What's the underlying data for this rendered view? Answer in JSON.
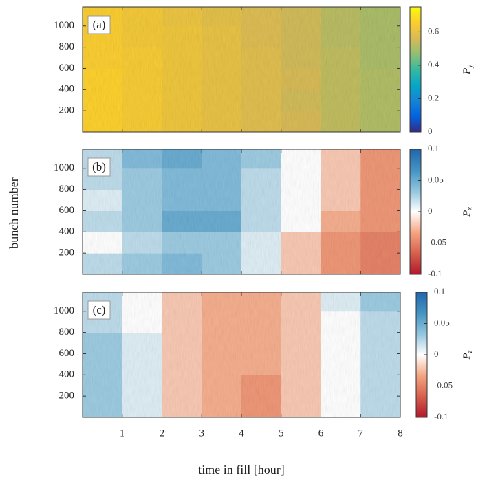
{
  "chart_data": [
    {
      "type": "heatmap",
      "panel_label": "(a)",
      "x_edges": [
        0,
        1,
        2,
        3,
        4,
        5,
        6,
        7,
        8
      ],
      "y_edges": [
        0,
        200,
        400,
        600,
        800,
        1000,
        1180
      ],
      "z": [
        [
          0.66,
          0.64,
          0.62,
          0.6,
          0.58,
          0.56,
          0.53,
          0.51
        ],
        [
          0.66,
          0.64,
          0.62,
          0.6,
          0.58,
          0.55,
          0.53,
          0.51
        ],
        [
          0.66,
          0.64,
          0.62,
          0.6,
          0.58,
          0.56,
          0.53,
          0.51
        ],
        [
          0.65,
          0.64,
          0.62,
          0.6,
          0.58,
          0.55,
          0.53,
          0.5
        ],
        [
          0.65,
          0.63,
          0.62,
          0.6,
          0.57,
          0.55,
          0.52,
          0.5
        ],
        [
          0.65,
          0.63,
          0.61,
          0.59,
          0.57,
          0.55,
          0.52,
          0.5
        ]
      ],
      "xlim": [
        0,
        8
      ],
      "ylim": [
        0,
        1180
      ],
      "xticks": [
        1,
        2,
        3,
        4,
        5,
        6,
        7,
        8
      ],
      "yticks": [
        200,
        400,
        600,
        800,
        1000
      ],
      "clim": [
        0,
        0.75
      ],
      "cticks": [
        0,
        0.2,
        0.4,
        0.6
      ],
      "colormap": [
        "#352a87",
        "#0363e1",
        "#1485d4",
        "#06a7c6",
        "#38b99e",
        "#92bf73",
        "#d9ba56",
        "#fcce2e",
        "#f9fb0e"
      ],
      "colorbar_symbol": "P",
      "colorbar_subscript": "y"
    },
    {
      "type": "heatmap",
      "panel_label": "(b)",
      "ylabel": "bunch number",
      "x_edges": [
        0,
        1,
        2,
        3,
        4,
        5,
        6,
        7,
        8
      ],
      "y_edges": [
        0,
        200,
        400,
        600,
        800,
        1000,
        1180
      ],
      "z": [
        [
          0.02,
          0.03,
          0.04,
          0.03,
          0.01,
          -0.02,
          -0.04,
          -0.05
        ],
        [
          0.0,
          0.02,
          0.03,
          0.03,
          0.01,
          -0.02,
          -0.04,
          -0.05
        ],
        [
          0.02,
          0.03,
          0.05,
          0.05,
          0.02,
          0.0,
          -0.03,
          -0.04
        ],
        [
          0.01,
          0.03,
          0.04,
          0.04,
          0.02,
          0.0,
          -0.02,
          -0.04
        ],
        [
          0.02,
          0.03,
          0.04,
          0.04,
          0.02,
          0.0,
          -0.02,
          -0.04
        ],
        [
          0.02,
          0.04,
          0.05,
          0.04,
          0.03,
          0.0,
          -0.02,
          -0.04
        ]
      ],
      "xlim": [
        0,
        8
      ],
      "ylim": [
        0,
        1180
      ],
      "xticks": [
        1,
        2,
        3,
        4,
        5,
        6,
        7,
        8
      ],
      "yticks": [
        200,
        400,
        600,
        800,
        1000
      ],
      "clim": [
        -0.1,
        0.1
      ],
      "cticks": [
        -0.1,
        -0.05,
        0,
        0.05,
        0.1
      ],
      "colormap": [
        "#b2182b",
        "#d6604d",
        "#f4a582",
        "#ffffff",
        "#92c5de",
        "#4393c3",
        "#2166ac"
      ],
      "colorbar_symbol": "P",
      "colorbar_subscript": "x"
    },
    {
      "type": "heatmap",
      "panel_label": "(c)",
      "xlabel": "time in fill [hour]",
      "x_edges": [
        0,
        1,
        2,
        3,
        4,
        5,
        6,
        7,
        8
      ],
      "y_edges": [
        0,
        200,
        400,
        600,
        800,
        1000,
        1180
      ],
      "z": [
        [
          0.03,
          0.01,
          -0.02,
          -0.03,
          -0.04,
          -0.02,
          0.0,
          0.02
        ],
        [
          0.03,
          0.01,
          -0.02,
          -0.03,
          -0.04,
          -0.02,
          0.0,
          0.02
        ],
        [
          0.03,
          0.01,
          -0.02,
          -0.03,
          -0.03,
          -0.02,
          0.0,
          0.02
        ],
        [
          0.03,
          0.01,
          -0.02,
          -0.03,
          -0.03,
          -0.02,
          0.0,
          0.02
        ],
        [
          0.02,
          0.0,
          -0.02,
          -0.03,
          -0.03,
          -0.02,
          0.0,
          0.02
        ],
        [
          0.02,
          0.0,
          -0.02,
          -0.03,
          -0.03,
          -0.02,
          0.01,
          0.03
        ]
      ],
      "xlim": [
        0,
        8
      ],
      "ylim": [
        0,
        1180
      ],
      "xticks": [
        1,
        2,
        3,
        4,
        5,
        6,
        7,
        8
      ],
      "yticks": [
        200,
        400,
        600,
        800,
        1000
      ],
      "clim": [
        -0.1,
        0.1
      ],
      "cticks": [
        -0.1,
        -0.05,
        0,
        0.05,
        0.1
      ],
      "colormap": [
        "#b2182b",
        "#d6604d",
        "#f4a582",
        "#ffffff",
        "#92c5de",
        "#4393c3",
        "#2166ac"
      ],
      "colorbar_symbol": "P",
      "colorbar_subscript": "z"
    }
  ]
}
